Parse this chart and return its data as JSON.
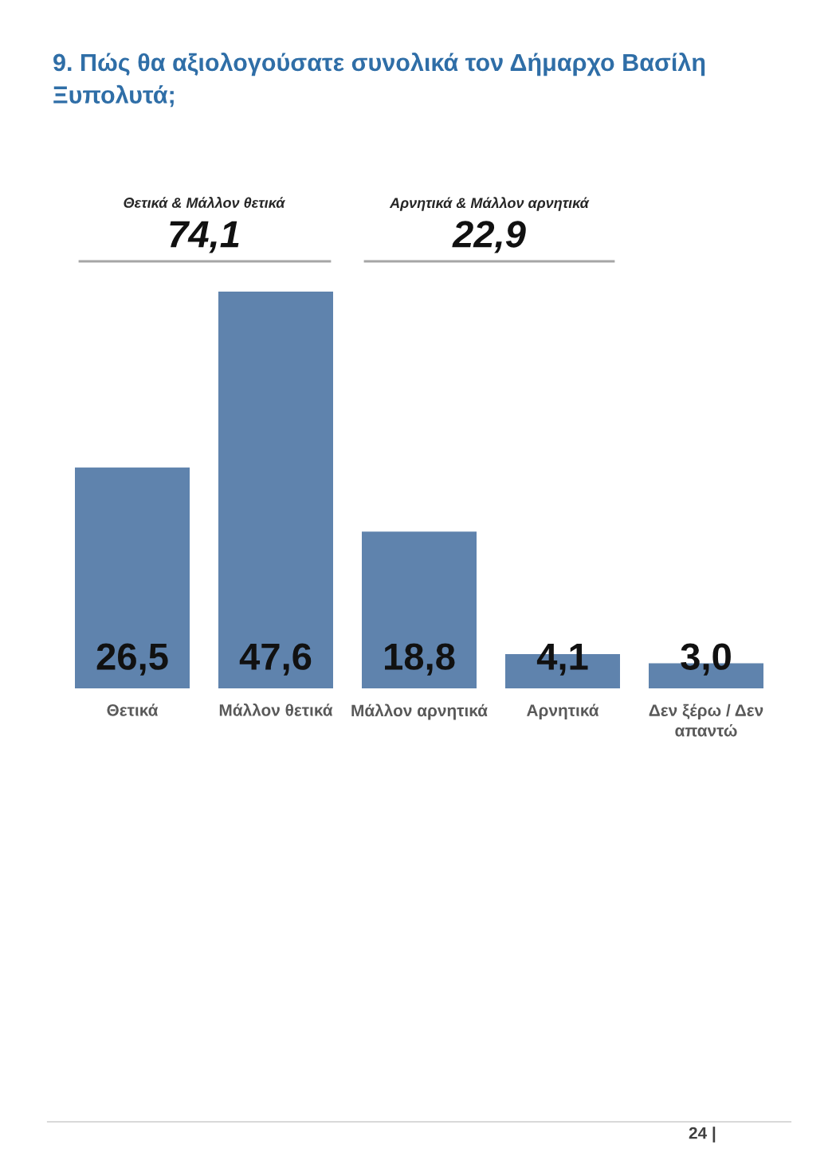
{
  "chart_data": {
    "type": "bar",
    "title": "9. Πώς θα αξιολογούσατε συνολικά τον Δήμαρχο Βασίλη\nΞυπολυτά;",
    "categories": [
      "Θετικά",
      "Μάλλον θετικά",
      "Μάλλον αρνητικά",
      "Αρνητικά",
      "Δεν ξέρω / Δεν\nαπαντώ"
    ],
    "values": [
      26.5,
      47.6,
      18.8,
      4.1,
      3.0
    ],
    "value_labels": [
      "26,5",
      "47,6",
      "18,8",
      "4,1",
      "3,0"
    ],
    "color": "#5f83ad",
    "annotations": [
      "Θετικά & Μάλλον θετικά",
      "74,1",
      "Αρνητικά & Μάλλον αρνητικά",
      "22,9",
      "24 |"
    ]
  }
}
